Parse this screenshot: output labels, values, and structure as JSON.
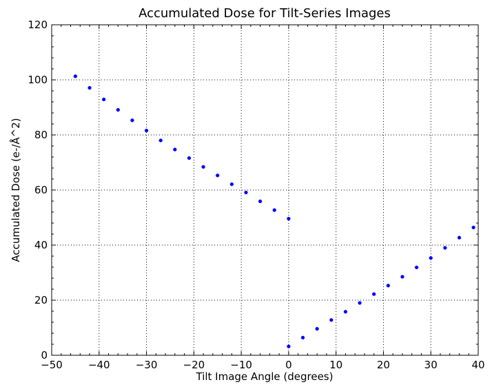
{
  "chart_data": {
    "type": "scatter",
    "title": "Accumulated Dose for Tilt-Series Images",
    "xlabel": "Tilt Image Angle (degrees)",
    "ylabel": "Accumulated Dose (e-/Å^2)",
    "xlim": [
      -50,
      40
    ],
    "ylim": [
      0,
      120
    ],
    "xticks": [
      -50,
      -40,
      -30,
      -20,
      -10,
      0,
      10,
      20,
      30,
      40
    ],
    "yticks": [
      0,
      20,
      40,
      60,
      80,
      100,
      120
    ],
    "grid": true,
    "grid_style": "dotted",
    "marker_color": "#0000ff",
    "series": [
      {
        "x": [
          0,
          3,
          6,
          9,
          12,
          15,
          18,
          21,
          24,
          27,
          30,
          33,
          36,
          39,
          0,
          -3,
          -6,
          -9,
          -12,
          -15,
          -18,
          -21,
          -24,
          -27,
          -30,
          -33,
          -36,
          -39,
          -42,
          -45
        ],
        "y": [
          3.2,
          6.4,
          9.6,
          12.8,
          15.8,
          19.0,
          22.2,
          25.3,
          28.5,
          31.9,
          35.3,
          39.0,
          42.7,
          46.4,
          49.6,
          52.7,
          55.9,
          59.1,
          62.1,
          65.3,
          68.4,
          71.6,
          74.7,
          78.0,
          81.6,
          85.3,
          89.1,
          92.9,
          97.1,
          101.3
        ]
      }
    ]
  }
}
